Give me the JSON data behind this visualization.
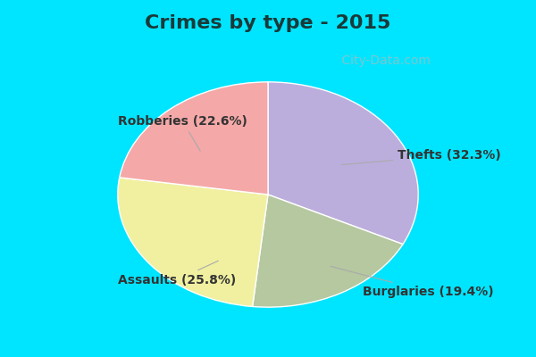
{
  "title": "Crimes by type - 2015",
  "title_fontsize": 16,
  "title_color": "#1a3a3a",
  "slices": [
    {
      "label": "Thefts (32.3%)",
      "value": 32.3,
      "color": "#bbaedd"
    },
    {
      "label": "Burglaries (19.4%)",
      "value": 19.4,
      "color": "#b5c8a0"
    },
    {
      "label": "Assaults (25.8%)",
      "value": 25.8,
      "color": "#f0f0a0"
    },
    {
      "label": "Robberies (22.6%)",
      "value": 22.6,
      "color": "#f4a8a8"
    }
  ],
  "border_color": "#00e5ff",
  "bg_inner_color": "#c8eee0",
  "label_fontsize": 10,
  "label_color": "#333333",
  "watermark": " City-Data.com",
  "watermark_color": "#90c0c8",
  "watermark_fontsize": 10,
  "border_width": 12,
  "startangle": 90,
  "aspect_ratio": 0.75
}
